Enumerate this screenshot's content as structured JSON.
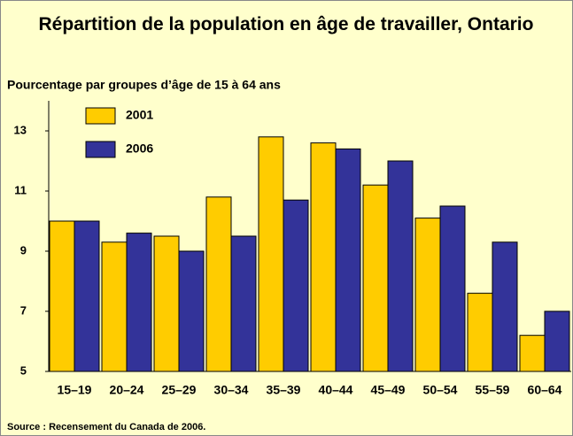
{
  "chart_data": {
    "type": "bar",
    "title": "Répartition de la population en âge de travailler, Ontario",
    "subtitle": "Pourcentage par groupes d’âge de 15 à 64 ans",
    "source": "Source : Recensement du Canada de 2006.",
    "categories": [
      "15–19",
      "20–24",
      "25–29",
      "30–34",
      "35–39",
      "40–44",
      "45–49",
      "50–54",
      "55–59",
      "60–64"
    ],
    "series": [
      {
        "name": "2001",
        "color": "#ffcc00",
        "values": [
          10.0,
          9.3,
          9.5,
          10.8,
          12.8,
          12.6,
          11.2,
          10.1,
          7.6,
          6.2
        ]
      },
      {
        "name": "2006",
        "color": "#333399",
        "values": [
          10.0,
          9.6,
          9.0,
          9.5,
          10.7,
          12.4,
          12.0,
          10.5,
          9.3,
          7.0
        ]
      }
    ],
    "ylim": [
      5,
      14
    ],
    "yticks": [
      5,
      7,
      9,
      11,
      13
    ],
    "grid": false,
    "legend": "top-left"
  }
}
